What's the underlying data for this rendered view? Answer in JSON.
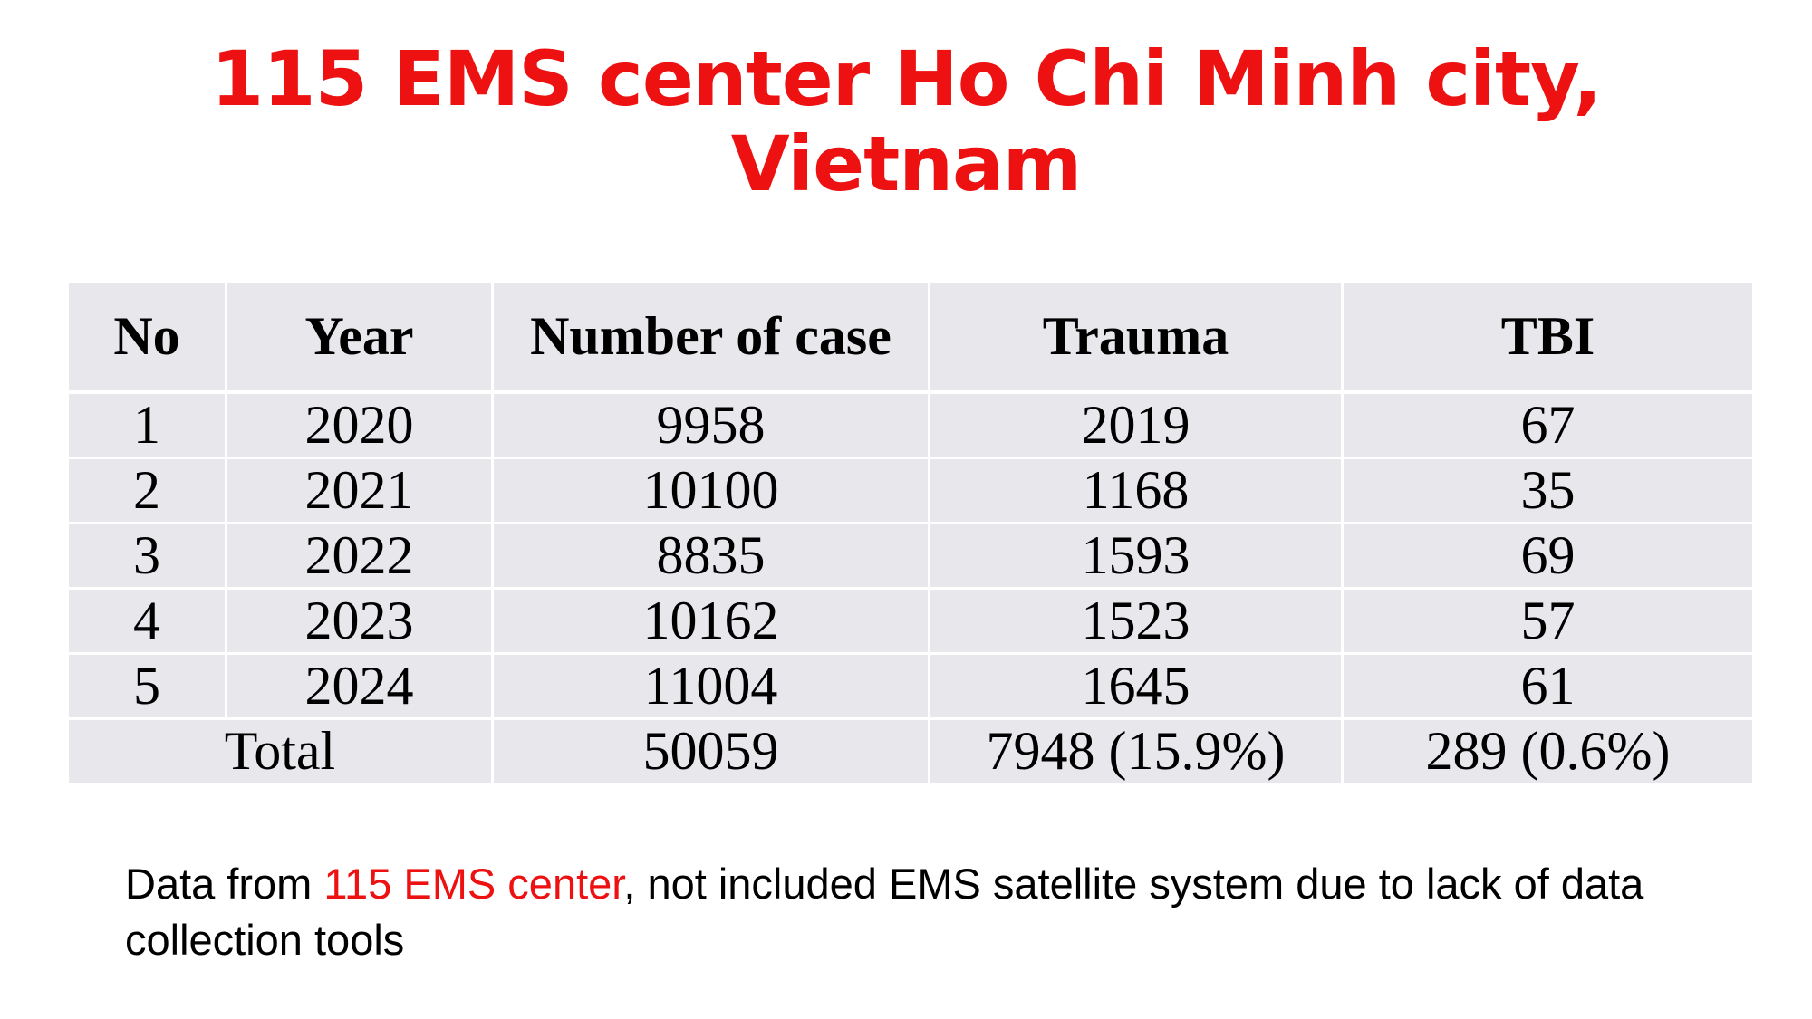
{
  "title": {
    "line1": "115 EMS center Ho Chi Minh city,",
    "line2": "Vietnam"
  },
  "table": {
    "headers": [
      "No",
      "Year",
      "Number of case",
      "Trauma",
      "TBI"
    ],
    "rows": [
      [
        "1",
        "2020",
        "9958",
        "2019",
        "67"
      ],
      [
        "2",
        "2021",
        "10100",
        "1168",
        "35"
      ],
      [
        "3",
        "2022",
        "8835",
        "1593",
        "69"
      ],
      [
        "4",
        "2023",
        "10162",
        "1523",
        "57"
      ],
      [
        "5",
        "2024",
        "11004",
        "1645",
        "61"
      ]
    ],
    "total": {
      "label": "Total",
      "cases": "50059",
      "trauma": "7948 (15.9%)",
      "tbi": "289 (0.6%)"
    }
  },
  "note": {
    "prefix": "Data from ",
    "highlight": "115 EMS center",
    "suffix": ", not included EMS satellite system due to lack of data collection tools"
  },
  "colors": {
    "accent": "#ee1111",
    "cell_bg": "#e8e8ec",
    "grid": "#ffffff"
  }
}
